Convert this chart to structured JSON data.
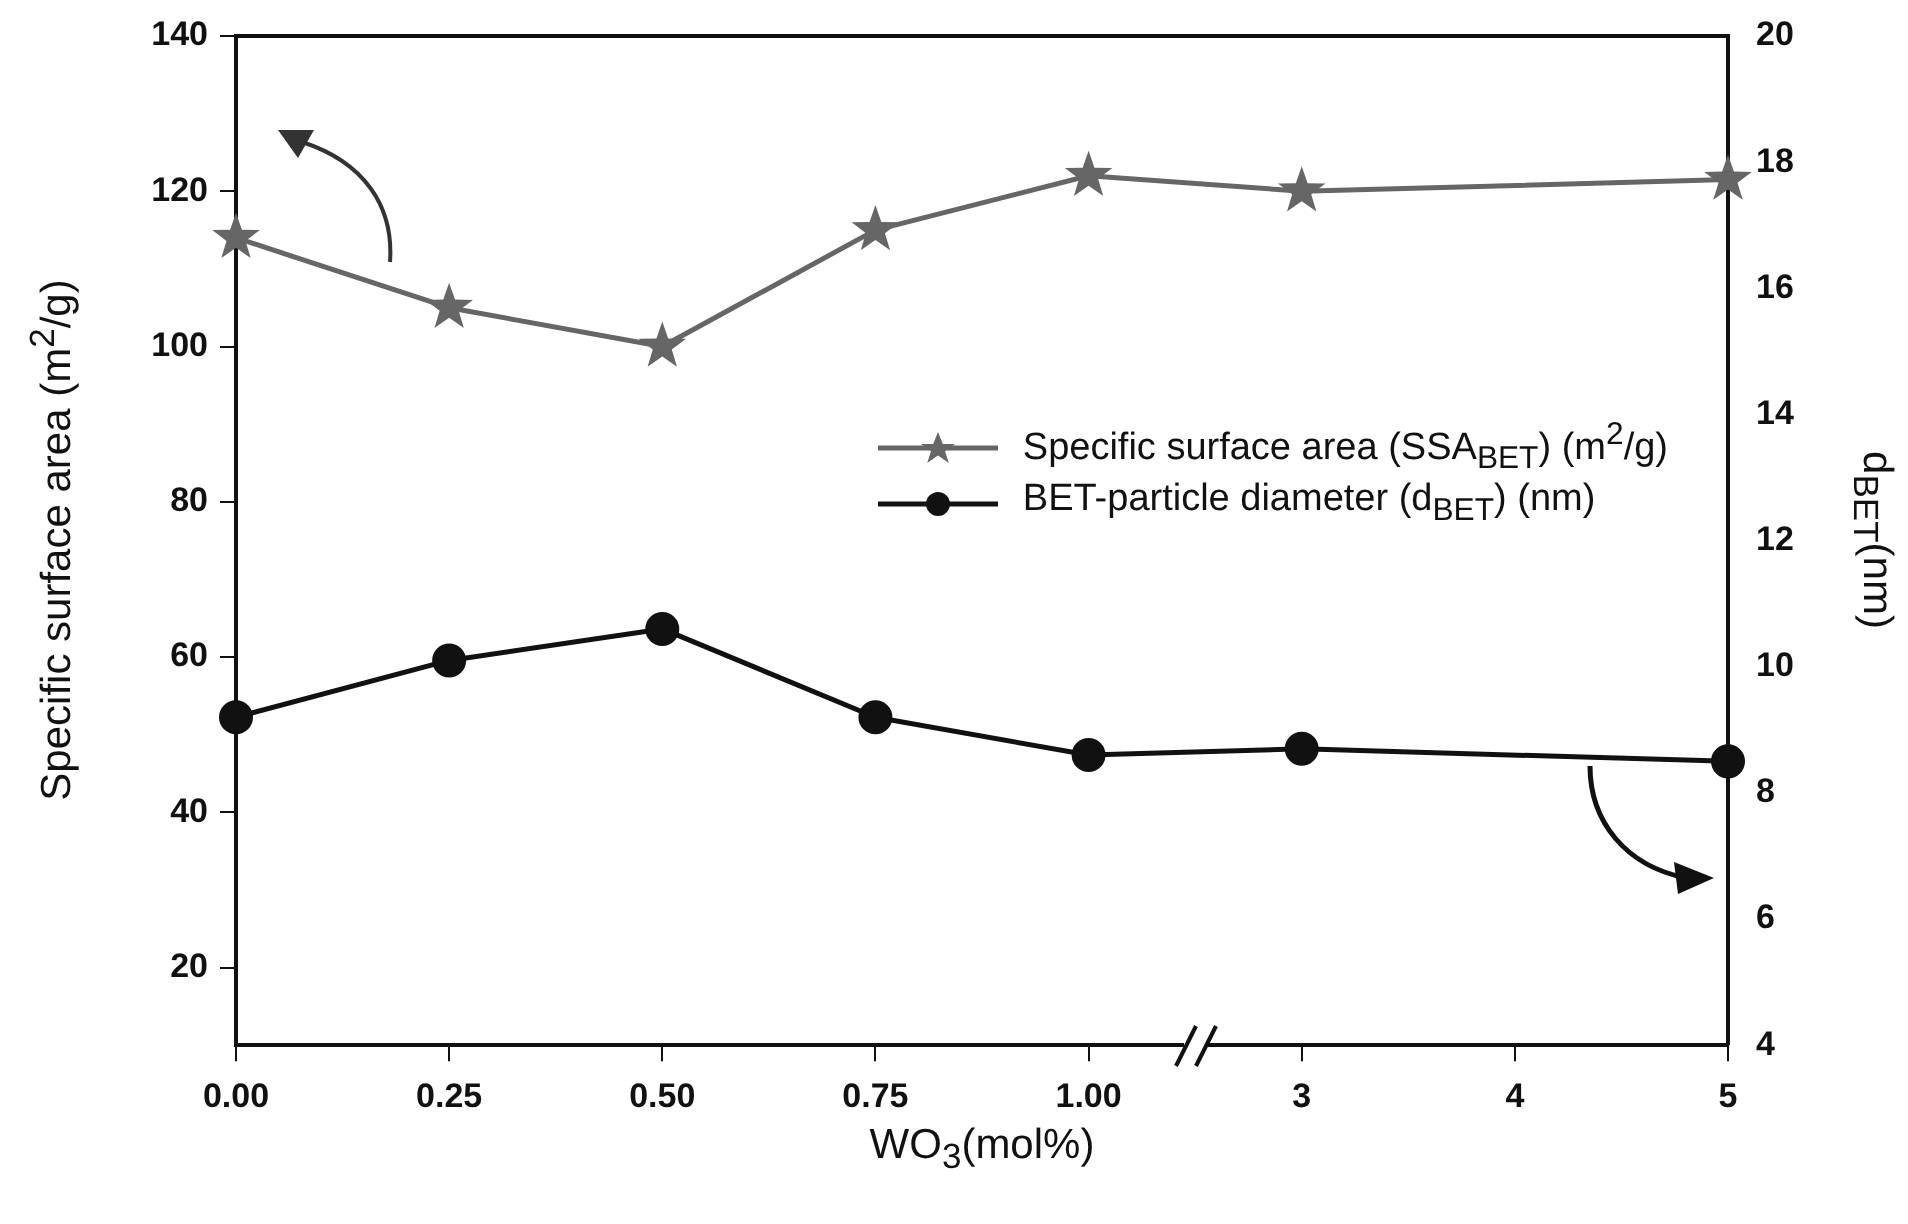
{
  "chart_data": {
    "type": "line",
    "xlabel": "WO$_{3}$(mol%)",
    "ylabel": "Specific surface area (m$^{2}$/g)",
    "y2label": "d$_{BET}$(nm)",
    "categories": [
      "0.00",
      "0.25",
      "0.50",
      "0.75",
      "1.00",
      "3",
      "4",
      "5"
    ],
    "series": [
      {
        "name": "Specific surface area (SSA$_{BET}$) (m$^{2}$/g)",
        "color": "#666666",
        "marker": "star",
        "values": [
          114,
          105,
          100,
          115,
          122,
          120,
          null,
          121.5
        ]
      },
      {
        "name": "BET-particle diameter (d$_{BET}$) (nm)",
        "color": "#111111",
        "marker": "circle",
        "axis": "y2",
        "values": [
          9.2,
          10.1,
          10.6,
          9.2,
          8.6,
          8.7,
          null,
          8.5
        ]
      }
    ],
    "ylim": [
      10,
      140
    ],
    "yticks": [
      20,
      40,
      60,
      80,
      100,
      120,
      140
    ],
    "y2lim": [
      4,
      20
    ],
    "y2ticks": [
      4,
      6,
      8,
      10,
      12,
      14,
      16,
      18,
      20
    ],
    "legend": "right",
    "line_style": "solid"
  }
}
